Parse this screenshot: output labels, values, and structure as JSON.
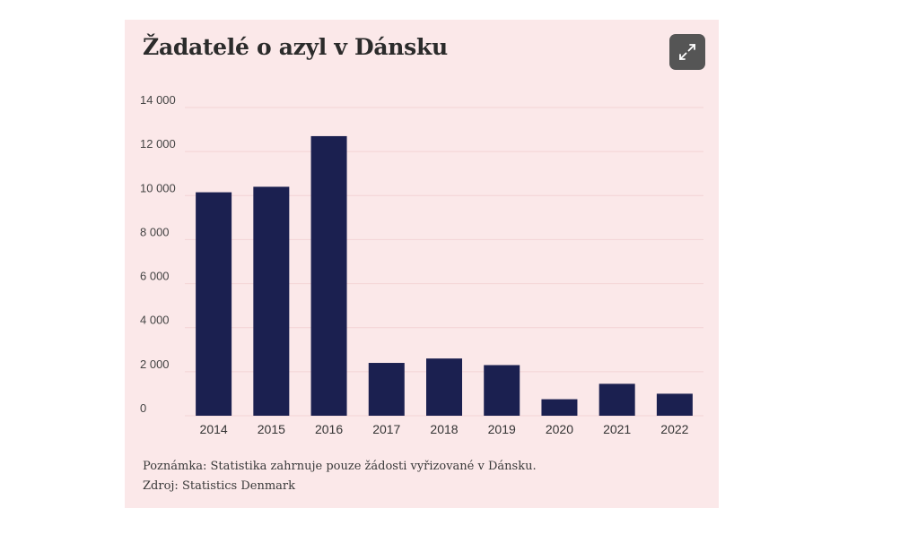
{
  "title": "Žadatelé o azyl v Dánsku",
  "expand_icon": "expand-arrows-icon",
  "note": "Poznámka: Statistika zahrnuje pouze žádosti vyřizované v Dánsku.",
  "source": "Zdroj: Statistics Denmark",
  "colors": {
    "bar": "#1b2050",
    "background": "#fbe8e9",
    "button": "#555555"
  },
  "chart_data": {
    "type": "bar",
    "title": "Žadatelé o azyl v Dánsku",
    "xlabel": "",
    "ylabel": "",
    "categories": [
      "2014",
      "2015",
      "2016",
      "2017",
      "2018",
      "2019",
      "2020",
      "2021",
      "2022"
    ],
    "values": [
      10150,
      10400,
      12700,
      2400,
      2600,
      2300,
      750,
      1450,
      1000
    ],
    "ylim": [
      0,
      14000
    ],
    "yticks": [
      0,
      2000,
      4000,
      6000,
      8000,
      10000,
      12000,
      14000
    ],
    "ytick_labels": [
      "0",
      "2 000",
      "4 000",
      "6 000",
      "8 000",
      "10 000",
      "12 000",
      "14 000"
    ],
    "grid": true,
    "legend": "none"
  }
}
